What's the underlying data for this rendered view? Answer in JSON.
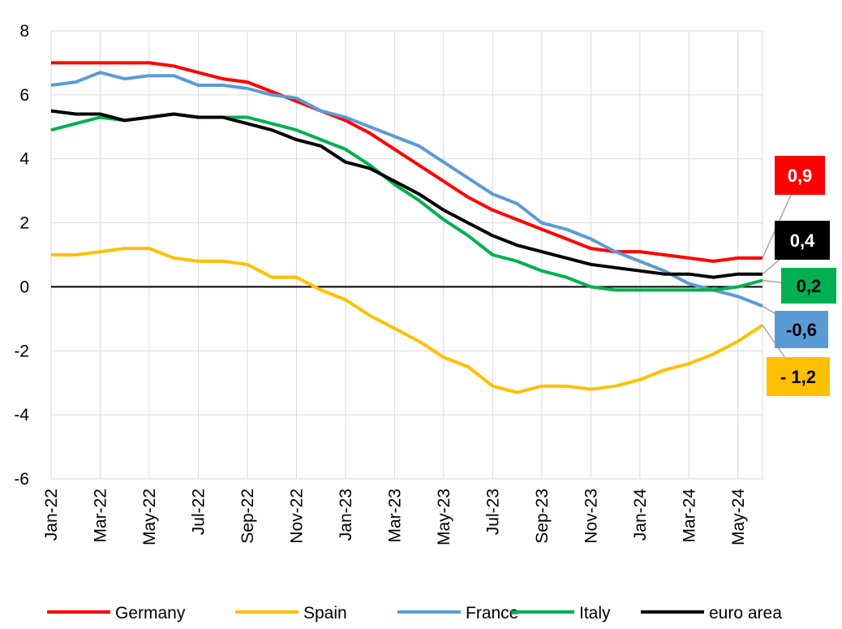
{
  "chart_data": {
    "type": "line",
    "categories": [
      "Jan-22",
      null,
      "Mar-22",
      null,
      "May-22",
      null,
      "Jul-22",
      null,
      "Sep-22",
      null,
      "Nov-22",
      null,
      "Jan-23",
      null,
      "Mar-23",
      null,
      "May-23",
      null,
      "Jul-23",
      null,
      "Sep-23",
      null,
      "Nov-23",
      null,
      "Jan-24",
      null,
      "Mar-24",
      null,
      "May-24",
      null
    ],
    "series": [
      {
        "name": "Germany",
        "color": "#ff0000",
        "end_label": "0,9",
        "values": [
          7,
          7,
          7,
          7,
          7,
          6.9,
          6.7,
          6.5,
          6.4,
          6.1,
          5.8,
          5.5,
          5.2,
          4.8,
          4.3,
          3.8,
          3.3,
          2.8,
          2.4,
          2.1,
          1.8,
          1.5,
          1.2,
          1.1,
          1.1,
          1.0,
          0.9,
          0.8,
          0.9,
          0.9
        ]
      },
      {
        "name": "Spain",
        "color": "#ffc000",
        "end_label": "- 1,2",
        "values": [
          1.0,
          1.0,
          1.1,
          1.2,
          1.2,
          0.9,
          0.8,
          0.8,
          0.7,
          0.3,
          0.3,
          -0.1,
          -0.4,
          -0.9,
          -1.3,
          -1.7,
          -2.2,
          -2.5,
          -3.1,
          -3.3,
          -3.1,
          -3.1,
          -3.2,
          -3.1,
          -2.9,
          -2.6,
          -2.4,
          -2.1,
          -1.7,
          -1.2
        ]
      },
      {
        "name": "France",
        "color": "#5b9bd5",
        "end_label": "-0,6",
        "values": [
          6.3,
          6.4,
          6.7,
          6.5,
          6.6,
          6.6,
          6.3,
          6.3,
          6.2,
          6.0,
          5.9,
          5.5,
          5.3,
          5.0,
          4.7,
          4.4,
          3.9,
          3.4,
          2.9,
          2.6,
          2.0,
          1.8,
          1.5,
          1.1,
          0.8,
          0.5,
          0.1,
          -0.1,
          -0.3,
          -0.6
        ]
      },
      {
        "name": "Italy",
        "color": "#00b050",
        "end_label": "0,2",
        "values": [
          4.9,
          5.1,
          5.3,
          5.2,
          5.3,
          5.4,
          5.3,
          5.3,
          5.3,
          5.1,
          4.9,
          4.6,
          4.3,
          3.8,
          3.2,
          2.7,
          2.1,
          1.6,
          1.0,
          0.8,
          0.5,
          0.3,
          0.0,
          -0.1,
          -0.1,
          -0.1,
          -0.1,
          -0.1,
          0.0,
          0.2
        ]
      },
      {
        "name": "euro area",
        "color": "#000000",
        "end_label": "0,4",
        "values": [
          5.5,
          5.4,
          5.4,
          5.2,
          5.3,
          5.4,
          5.3,
          5.3,
          5.1,
          4.9,
          4.6,
          4.4,
          3.9,
          3.7,
          3.3,
          2.9,
          2.4,
          2.0,
          1.6,
          1.3,
          1.1,
          0.9,
          0.7,
          0.6,
          0.5,
          0.4,
          0.4,
          0.3,
          0.4,
          0.4
        ]
      }
    ],
    "ylim": [
      -6,
      8
    ],
    "yticks": [
      -6,
      -4,
      -2,
      0,
      2,
      4,
      6,
      8
    ],
    "grid": true,
    "legend": "bottom"
  }
}
